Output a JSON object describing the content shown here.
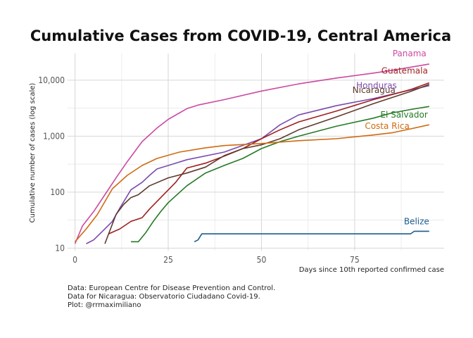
{
  "chart_data": {
    "type": "line",
    "title": "Cumulative Cases from COVID-19, Central America",
    "xlabel": "Days since 10th reported confirmed case",
    "ylabel": "Cumulative number of cases (log scale)",
    "x_ticks": [
      0,
      25,
      50,
      75
    ],
    "y_ticks": [
      10,
      100,
      1000,
      10000
    ],
    "y_tick_labels": [
      "10",
      "100",
      "1,000",
      "10,000"
    ],
    "xlim": [
      -2,
      99
    ],
    "ylim": [
      9,
      30000
    ],
    "log_y": true,
    "grid": true,
    "series": [
      {
        "name": "Panama",
        "color": "#cc4aa0",
        "x": [
          0,
          2,
          5,
          8,
          11,
          14,
          18,
          22,
          25,
          30,
          33,
          40,
          50,
          60,
          70,
          80,
          85,
          95
        ],
        "y": [
          12,
          25,
          45,
          90,
          180,
          350,
          800,
          1400,
          2000,
          3100,
          3600,
          4500,
          6400,
          8600,
          10900,
          13400,
          15000,
          19500
        ]
      },
      {
        "name": "Honduras",
        "color": "#7a4bae",
        "x": [
          3,
          5,
          8,
          10,
          12,
          15,
          18,
          20,
          22,
          25,
          30,
          40,
          50,
          55,
          60,
          70,
          80,
          95
        ],
        "y": [
          12,
          14,
          22,
          30,
          52,
          110,
          150,
          200,
          260,
          300,
          380,
          520,
          900,
          1600,
          2400,
          3500,
          4700,
          8000
        ]
      },
      {
        "name": "Guatemala",
        "color": "#9e1f1f",
        "x": [
          9,
          12,
          15,
          18,
          20,
          23,
          27,
          30,
          35,
          40,
          45,
          50,
          55,
          60,
          70,
          80,
          90,
          95
        ],
        "y": [
          18,
          22,
          30,
          35,
          50,
          80,
          150,
          270,
          330,
          440,
          600,
          900,
          1300,
          1800,
          2800,
          4500,
          6800,
          9000
        ]
      },
      {
        "name": "Nicaragua",
        "color": "#5e3a2c",
        "x": [
          8,
          11,
          13,
          15,
          17,
          20,
          25,
          30,
          35,
          40,
          45,
          50,
          55,
          60,
          70,
          80,
          90,
          95
        ],
        "y": [
          12,
          40,
          60,
          80,
          90,
          130,
          180,
          220,
          280,
          450,
          600,
          700,
          900,
          1300,
          2200,
          3800,
          6300,
          8400
        ]
      },
      {
        "name": "El Salvador",
        "color": "#267a26",
        "x": [
          15,
          17,
          19,
          21,
          23,
          25,
          30,
          35,
          40,
          45,
          50,
          55,
          60,
          70,
          80,
          85,
          90,
          95
        ],
        "y": [
          13,
          13,
          19,
          30,
          45,
          65,
          130,
          220,
          300,
          400,
          600,
          800,
          1000,
          1500,
          2100,
          2600,
          3000,
          3400
        ]
      },
      {
        "name": "Costa Rica",
        "color": "#cf6a12",
        "x": [
          0,
          3,
          6,
          10,
          14,
          18,
          22,
          28,
          35,
          40,
          50,
          60,
          70,
          80,
          85,
          90,
          95
        ],
        "y": [
          13,
          22,
          40,
          115,
          200,
          300,
          400,
          520,
          620,
          680,
          740,
          830,
          900,
          1050,
          1150,
          1350,
          1600
        ]
      },
      {
        "name": "Belize",
        "color": "#1b5d8f",
        "x": [
          32,
          33,
          34,
          40,
          60,
          80,
          90,
          91,
          95
        ],
        "y": [
          13,
          14,
          18,
          18,
          18,
          18,
          18,
          20,
          20
        ]
      }
    ]
  },
  "caption": {
    "line1": "Data: European Centre for Disease Prevention and Control.",
    "line2": "Data for Nicaragua: Observatorio Ciudadano Covid-19.",
    "line3": "Plot: @rrmaximiliano"
  }
}
